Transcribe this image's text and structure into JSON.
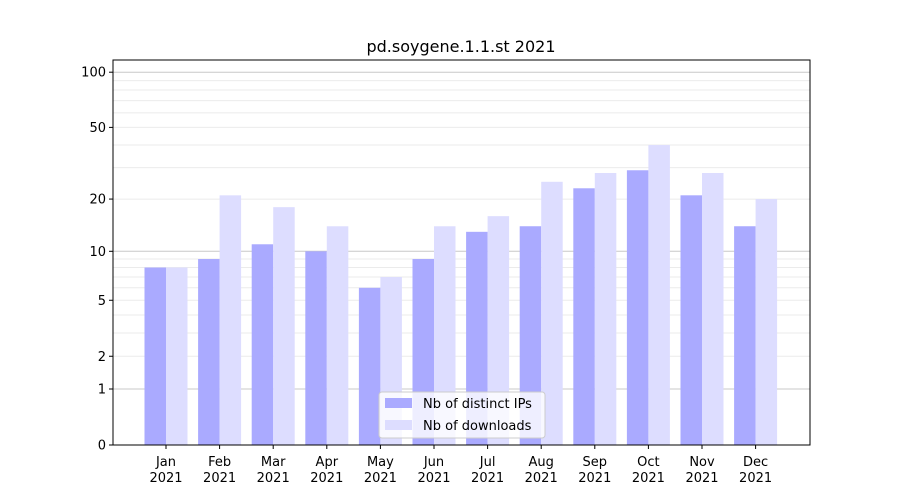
{
  "chart_data": {
    "type": "bar",
    "title": "pd.soygene.1.1.st 2021",
    "xlabel": "",
    "ylabel": "",
    "yscale": "log(1+x)",
    "ylim": [
      0,
      116
    ],
    "yticks": [
      0,
      1,
      2,
      5,
      10,
      20,
      50,
      100
    ],
    "categories": [
      "Jan",
      "Feb",
      "Mar",
      "Apr",
      "May",
      "Jun",
      "Jul",
      "Aug",
      "Sep",
      "Oct",
      "Nov",
      "Dec"
    ],
    "category_year": "2021",
    "series": [
      {
        "name": "Nb of distinct IPs",
        "color": "#aaaaff",
        "values": [
          8,
          9,
          11,
          10,
          6,
          9,
          13,
          14,
          23,
          29,
          21,
          14
        ]
      },
      {
        "name": "Nb of downloads",
        "color": "#ddddff",
        "values": [
          8,
          21,
          18,
          14,
          7,
          14,
          16,
          25,
          28,
          40,
          28,
          20
        ]
      }
    ],
    "grid": true,
    "legend": "bottom-center"
  }
}
